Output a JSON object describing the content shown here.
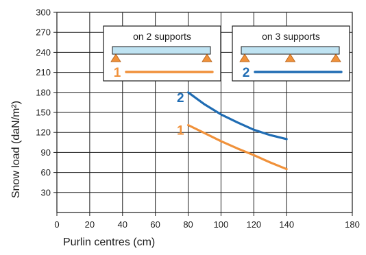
{
  "chart_data": {
    "type": "line",
    "xlabel": "Purlin centres (cm)",
    "ylabel": "Snow load  (daN/m²)",
    "xlim": [
      0,
      180
    ],
    "ylim": [
      0,
      300
    ],
    "x_ticks": [
      "0",
      "20",
      "40",
      "60",
      "80",
      "100",
      "120",
      "140",
      "180"
    ],
    "y_ticks": [
      "30",
      "60",
      "90",
      "120",
      "150",
      "180",
      "210",
      "240",
      "270",
      "300"
    ],
    "grid": true,
    "series": [
      {
        "name": "1",
        "color": "#f0913a",
        "x": [
          80,
          90,
          100,
          110,
          120,
          130,
          140
        ],
        "y": [
          131,
          119,
          107,
          96,
          86,
          75,
          65
        ]
      },
      {
        "name": "2",
        "color": "#1f6cb3",
        "x": [
          80,
          90,
          100,
          110,
          120,
          130,
          140
        ],
        "y": [
          180,
          162,
          147,
          135,
          124,
          116,
          110
        ]
      }
    ],
    "legend": [
      {
        "title": "on 2 supports",
        "key": "1",
        "supports": 2,
        "color": "#f0913a"
      },
      {
        "title": "on 3 supports",
        "key": "2",
        "supports": 3,
        "color": "#1f6cb3"
      }
    ],
    "colors": {
      "beam": "#bfe3f2",
      "support": "#f0913a",
      "series1": "#f0913a",
      "series2": "#1f6cb3"
    }
  }
}
